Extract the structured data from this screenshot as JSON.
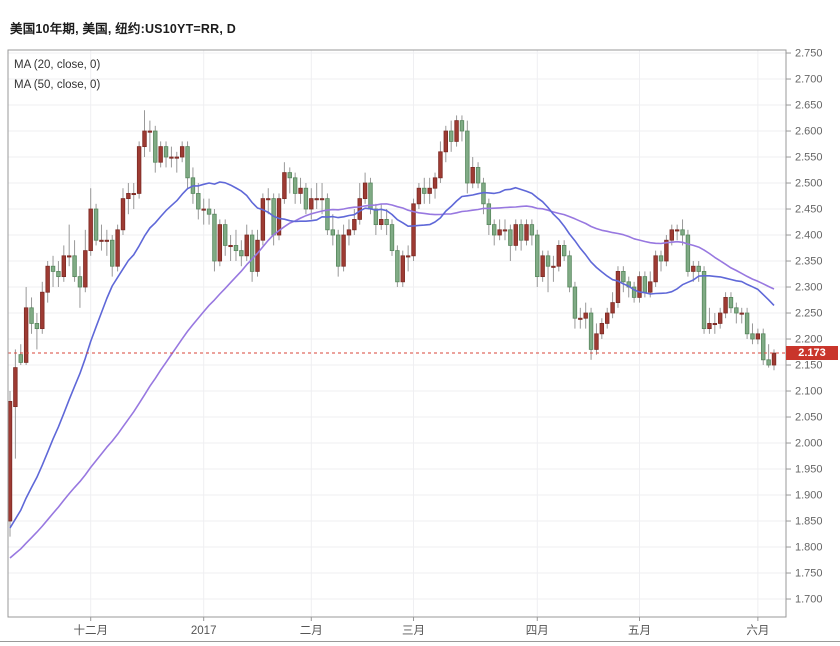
{
  "header": {
    "title": "美国10年期, 美国, 纽约:US10YT=RR, D"
  },
  "legend": {
    "ma20_label": "MA (20, close, 0)",
    "ma50_label": "MA (50, close, 0)"
  },
  "price_line": {
    "value": 2.173,
    "label": "2.173"
  },
  "colors": {
    "up_fill": "#9e3b33",
    "up_border": "#7c2a24",
    "down_fill": "#80ab85",
    "down_border": "#57875d",
    "wick": "#999999",
    "ma20": "#5f68d8",
    "ma50": "#9878e0",
    "price_line": "#d8453a",
    "badge_bg": "#c9352b",
    "badge_text": "#ffffff",
    "grid": "#efeff2",
    "border": "#999999",
    "axis_text": "#666666",
    "month_text": "#555555"
  },
  "chart_data": {
    "type": "candlestick",
    "title": "美国10年期, 美国, 纽约:US10YT=RR, D",
    "symbol": "US10YT=RR",
    "interval": "D",
    "legend": [
      "MA (20, close, 0)",
      "MA (50, close, 0)"
    ],
    "last_price": 2.173,
    "y_axis": {
      "min": 1.7,
      "max": 2.75,
      "step": 0.05,
      "labels": [
        "2.750",
        "2.700",
        "2.650",
        "2.600",
        "2.550",
        "2.500",
        "2.450",
        "2.400",
        "2.350",
        "2.300",
        "2.250",
        "2.200",
        "2.150",
        "2.100",
        "2.050",
        "2.000",
        "1.950",
        "1.900",
        "1.850",
        "1.800",
        "1.750",
        "1.700"
      ]
    },
    "x_axis": {
      "ticks": [
        {
          "index": 15,
          "label": "十二月"
        },
        {
          "index": 36,
          "label": "2017"
        },
        {
          "index": 56,
          "label": "二月"
        },
        {
          "index": 75,
          "label": "三月"
        },
        {
          "index": 98,
          "label": "四月"
        },
        {
          "index": 117,
          "label": "五月"
        },
        {
          "index": 139,
          "label": "六月"
        }
      ]
    },
    "ma_series": [
      {
        "name": "MA20",
        "period": 20
      },
      {
        "name": "MA50",
        "period": 50
      }
    ],
    "ma_warmup_closes": [
      1.7,
      1.71,
      1.72,
      1.7,
      1.69,
      1.71,
      1.72,
      1.73,
      1.71,
      1.7,
      1.72,
      1.73,
      1.74,
      1.73,
      1.72,
      1.74,
      1.75,
      1.74,
      1.76,
      1.75,
      1.74,
      1.76,
      1.77,
      1.76,
      1.78,
      1.77,
      1.79,
      1.78,
      1.8,
      1.79,
      1.8,
      1.81,
      1.8,
      1.82,
      1.83,
      1.82,
      1.84,
      1.83,
      1.85,
      1.84,
      1.83,
      1.81,
      1.81,
      1.78,
      1.8,
      1.83,
      1.84,
      1.85,
      1.86
    ],
    "candles": [
      [
        1.85,
        2.1,
        1.82,
        2.08
      ],
      [
        2.07,
        2.18,
        1.97,
        2.145
      ],
      [
        2.17,
        2.19,
        2.15,
        2.155
      ],
      [
        2.155,
        2.3,
        2.15,
        2.26
      ],
      [
        2.26,
        2.28,
        2.21,
        2.23
      ],
      [
        2.23,
        2.25,
        2.18,
        2.22
      ],
      [
        2.22,
        2.31,
        2.21,
        2.29
      ],
      [
        2.29,
        2.35,
        2.27,
        2.34
      ],
      [
        2.34,
        2.36,
        2.3,
        2.33
      ],
      [
        2.33,
        2.35,
        2.3,
        2.32
      ],
      [
        2.32,
        2.38,
        2.31,
        2.36
      ],
      [
        2.36,
        2.42,
        2.34,
        2.36
      ],
      [
        2.36,
        2.39,
        2.31,
        2.32
      ],
      [
        2.32,
        2.34,
        2.26,
        2.3
      ],
      [
        2.3,
        2.41,
        2.29,
        2.37
      ],
      [
        2.37,
        2.49,
        2.36,
        2.45
      ],
      [
        2.45,
        2.46,
        2.38,
        2.39
      ],
      [
        2.39,
        2.42,
        2.37,
        2.39
      ],
      [
        2.39,
        2.41,
        2.36,
        2.39
      ],
      [
        2.39,
        2.4,
        2.32,
        2.34
      ],
      [
        2.34,
        2.42,
        2.33,
        2.41
      ],
      [
        2.41,
        2.49,
        2.4,
        2.47
      ],
      [
        2.47,
        2.5,
        2.44,
        2.48
      ],
      [
        2.48,
        2.5,
        2.45,
        2.48
      ],
      [
        2.48,
        2.58,
        2.47,
        2.57
      ],
      [
        2.57,
        2.64,
        2.55,
        2.6
      ],
      [
        2.6,
        2.62,
        2.56,
        2.6
      ],
      [
        2.6,
        2.61,
        2.52,
        2.54
      ],
      [
        2.54,
        2.58,
        2.53,
        2.57
      ],
      [
        2.57,
        2.58,
        2.53,
        2.55
      ],
      [
        2.55,
        2.57,
        2.53,
        2.55
      ],
      [
        2.55,
        2.56,
        2.52,
        2.55
      ],
      [
        2.55,
        2.58,
        2.54,
        2.57
      ],
      [
        2.57,
        2.58,
        2.49,
        2.51
      ],
      [
        2.51,
        2.53,
        2.46,
        2.48
      ],
      [
        2.48,
        2.5,
        2.43,
        2.45
      ],
      [
        2.45,
        2.47,
        2.42,
        2.45
      ],
      [
        2.45,
        2.47,
        2.42,
        2.44
      ],
      [
        2.44,
        2.45,
        2.33,
        2.35
      ],
      [
        2.35,
        2.43,
        2.34,
        2.42
      ],
      [
        2.42,
        2.43,
        2.36,
        2.38
      ],
      [
        2.38,
        2.4,
        2.35,
        2.38
      ],
      [
        2.38,
        2.41,
        2.35,
        2.37
      ],
      [
        2.37,
        2.39,
        2.34,
        2.36
      ],
      [
        2.36,
        2.42,
        2.35,
        2.4
      ],
      [
        2.4,
        2.41,
        2.31,
        2.33
      ],
      [
        2.33,
        2.41,
        2.32,
        2.39
      ],
      [
        2.39,
        2.48,
        2.38,
        2.47
      ],
      [
        2.47,
        2.49,
        2.44,
        2.47
      ],
      [
        2.47,
        2.48,
        2.38,
        2.4
      ],
      [
        2.4,
        2.48,
        2.39,
        2.47
      ],
      [
        2.47,
        2.54,
        2.46,
        2.52
      ],
      [
        2.52,
        2.53,
        2.48,
        2.51
      ],
      [
        2.51,
        2.52,
        2.46,
        2.48
      ],
      [
        2.48,
        2.51,
        2.46,
        2.49
      ],
      [
        2.49,
        2.5,
        2.44,
        2.45
      ],
      [
        2.45,
        2.49,
        2.43,
        2.47
      ],
      [
        2.47,
        2.5,
        2.45,
        2.47
      ],
      [
        2.47,
        2.5,
        2.44,
        2.47
      ],
      [
        2.47,
        2.48,
        2.4,
        2.41
      ],
      [
        2.41,
        2.44,
        2.38,
        2.4
      ],
      [
        2.4,
        2.41,
        2.32,
        2.34
      ],
      [
        2.34,
        2.42,
        2.33,
        2.4
      ],
      [
        2.4,
        2.43,
        2.38,
        2.41
      ],
      [
        2.41,
        2.45,
        2.4,
        2.43
      ],
      [
        2.43,
        2.5,
        2.42,
        2.47
      ],
      [
        2.47,
        2.52,
        2.46,
        2.5
      ],
      [
        2.5,
        2.51,
        2.44,
        2.45
      ],
      [
        2.45,
        2.46,
        2.4,
        2.42
      ],
      [
        2.42,
        2.46,
        2.41,
        2.43
      ],
      [
        2.43,
        2.45,
        2.4,
        2.42
      ],
      [
        2.42,
        2.43,
        2.36,
        2.37
      ],
      [
        2.37,
        2.38,
        2.3,
        2.31
      ],
      [
        2.31,
        2.37,
        2.3,
        2.36
      ],
      [
        2.36,
        2.38,
        2.33,
        2.36
      ],
      [
        2.36,
        2.47,
        2.35,
        2.46
      ],
      [
        2.46,
        2.5,
        2.45,
        2.49
      ],
      [
        2.49,
        2.51,
        2.46,
        2.48
      ],
      [
        2.48,
        2.51,
        2.46,
        2.49
      ],
      [
        2.49,
        2.52,
        2.47,
        2.51
      ],
      [
        2.51,
        2.58,
        2.5,
        2.56
      ],
      [
        2.56,
        2.61,
        2.54,
        2.6
      ],
      [
        2.6,
        2.62,
        2.56,
        2.58
      ],
      [
        2.58,
        2.63,
        2.57,
        2.62
      ],
      [
        2.62,
        2.63,
        2.58,
        2.6
      ],
      [
        2.6,
        2.62,
        2.48,
        2.5
      ],
      [
        2.5,
        2.55,
        2.49,
        2.53
      ],
      [
        2.53,
        2.54,
        2.49,
        2.5
      ],
      [
        2.5,
        2.51,
        2.44,
        2.46
      ],
      [
        2.46,
        2.47,
        2.4,
        2.42
      ],
      [
        2.42,
        2.43,
        2.38,
        2.4
      ],
      [
        2.4,
        2.43,
        2.39,
        2.41
      ],
      [
        2.41,
        2.43,
        2.39,
        2.41
      ],
      [
        2.41,
        2.42,
        2.35,
        2.38
      ],
      [
        2.38,
        2.43,
        2.37,
        2.42
      ],
      [
        2.42,
        2.43,
        2.37,
        2.39
      ],
      [
        2.39,
        2.43,
        2.38,
        2.42
      ],
      [
        2.42,
        2.43,
        2.38,
        2.4
      ],
      [
        2.4,
        2.41,
        2.3,
        2.32
      ],
      [
        2.32,
        2.37,
        2.31,
        2.36
      ],
      [
        2.36,
        2.37,
        2.29,
        2.34
      ],
      [
        2.34,
        2.36,
        2.31,
        2.34
      ],
      [
        2.34,
        2.39,
        2.33,
        2.38
      ],
      [
        2.38,
        2.39,
        2.35,
        2.36
      ],
      [
        2.36,
        2.37,
        2.29,
        2.3
      ],
      [
        2.3,
        2.31,
        2.22,
        2.24
      ],
      [
        2.24,
        2.26,
        2.22,
        2.24
      ],
      [
        2.24,
        2.27,
        2.22,
        2.25
      ],
      [
        2.25,
        2.26,
        2.16,
        2.18
      ],
      [
        2.18,
        2.23,
        2.17,
        2.21
      ],
      [
        2.21,
        2.24,
        2.2,
        2.23
      ],
      [
        2.23,
        2.26,
        2.22,
        2.25
      ],
      [
        2.25,
        2.29,
        2.24,
        2.27
      ],
      [
        2.27,
        2.34,
        2.26,
        2.33
      ],
      [
        2.33,
        2.34,
        2.29,
        2.31
      ],
      [
        2.31,
        2.32,
        2.28,
        2.3
      ],
      [
        2.3,
        2.31,
        2.27,
        2.28
      ],
      [
        2.28,
        2.33,
        2.27,
        2.32
      ],
      [
        2.32,
        2.33,
        2.28,
        2.29
      ],
      [
        2.29,
        2.33,
        2.28,
        2.31
      ],
      [
        2.31,
        2.37,
        2.3,
        2.36
      ],
      [
        2.36,
        2.37,
        2.33,
        2.35
      ],
      [
        2.35,
        2.4,
        2.34,
        2.39
      ],
      [
        2.39,
        2.42,
        2.38,
        2.41
      ],
      [
        2.41,
        2.42,
        2.39,
        2.41
      ],
      [
        2.41,
        2.43,
        2.38,
        2.4
      ],
      [
        2.4,
        2.41,
        2.32,
        2.33
      ],
      [
        2.33,
        2.35,
        2.31,
        2.34
      ],
      [
        2.34,
        2.35,
        2.31,
        2.33
      ],
      [
        2.33,
        2.34,
        2.21,
        2.22
      ],
      [
        2.22,
        2.26,
        2.21,
        2.23
      ],
      [
        2.23,
        2.25,
        2.21,
        2.23
      ],
      [
        2.23,
        2.26,
        2.22,
        2.25
      ],
      [
        2.25,
        2.29,
        2.24,
        2.28
      ],
      [
        2.28,
        2.29,
        2.25,
        2.26
      ],
      [
        2.26,
        2.27,
        2.23,
        2.25
      ],
      [
        2.25,
        2.26,
        2.23,
        2.25
      ],
      [
        2.25,
        2.26,
        2.2,
        2.21
      ],
      [
        2.21,
        2.23,
        2.19,
        2.2
      ],
      [
        2.2,
        2.22,
        2.19,
        2.21
      ],
      [
        2.21,
        2.22,
        2.15,
        2.16
      ],
      [
        2.16,
        2.19,
        2.145,
        2.15
      ],
      [
        2.15,
        2.18,
        2.14,
        2.173
      ]
    ]
  }
}
